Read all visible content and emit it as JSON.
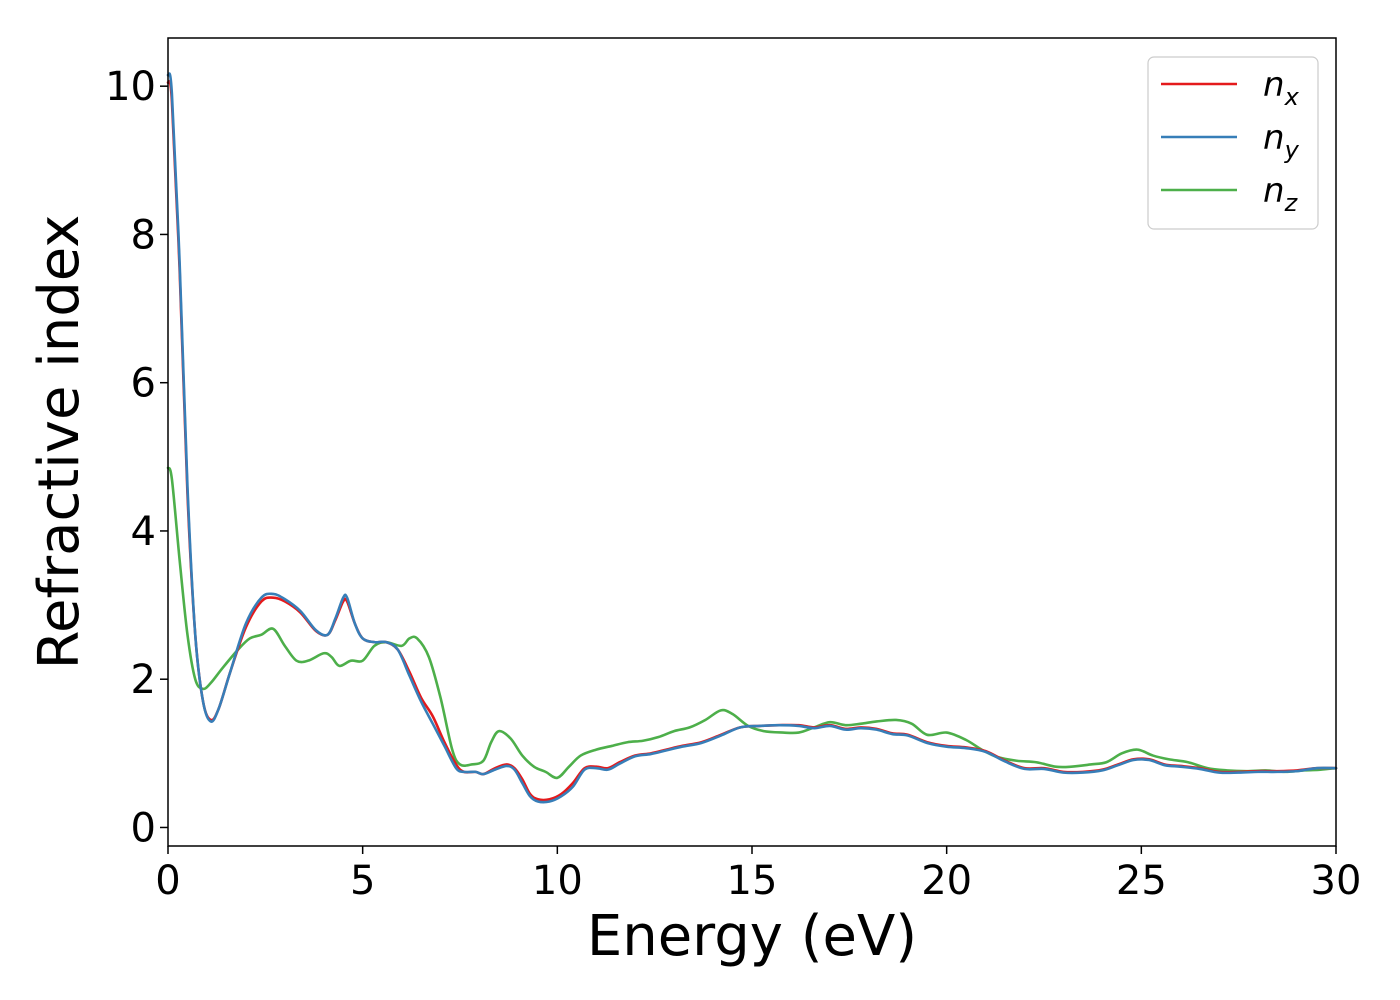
{
  "chart_data": {
    "type": "line",
    "xlabel": "Energy (eV)",
    "ylabel": "Refractive index",
    "xlim": [
      0,
      30
    ],
    "ylim": [
      -0.25,
      10.65
    ],
    "xticks": [
      0,
      5,
      10,
      15,
      20,
      25,
      30
    ],
    "yticks": [
      0,
      2,
      4,
      6,
      8,
      10
    ],
    "grid": false,
    "legend_position": "top-right",
    "series": [
      {
        "name": "n",
        "subscript": "x",
        "color": "#e41a1c",
        "points": [
          [
            0,
            10.05
          ],
          [
            0.1,
            9.8
          ],
          [
            0.3,
            7.5
          ],
          [
            0.5,
            4.5
          ],
          [
            0.7,
            2.6
          ],
          [
            0.9,
            1.7
          ],
          [
            1.1,
            1.45
          ],
          [
            1.3,
            1.6
          ],
          [
            1.6,
            2.1
          ],
          [
            2.0,
            2.7
          ],
          [
            2.4,
            3.05
          ],
          [
            2.7,
            3.1
          ],
          [
            3.0,
            3.05
          ],
          [
            3.4,
            2.9
          ],
          [
            3.8,
            2.65
          ],
          [
            4.1,
            2.6
          ],
          [
            4.3,
            2.8
          ],
          [
            4.5,
            3.05
          ],
          [
            4.6,
            3.05
          ],
          [
            4.8,
            2.75
          ],
          [
            5.0,
            2.55
          ],
          [
            5.3,
            2.5
          ],
          [
            5.6,
            2.5
          ],
          [
            5.9,
            2.4
          ],
          [
            6.2,
            2.1
          ],
          [
            6.5,
            1.75
          ],
          [
            6.8,
            1.5
          ],
          [
            7.1,
            1.15
          ],
          [
            7.4,
            0.85
          ],
          [
            7.6,
            0.75
          ],
          [
            7.9,
            0.75
          ],
          [
            8.1,
            0.72
          ],
          [
            8.4,
            0.8
          ],
          [
            8.7,
            0.85
          ],
          [
            8.9,
            0.8
          ],
          [
            9.1,
            0.65
          ],
          [
            9.3,
            0.45
          ],
          [
            9.5,
            0.38
          ],
          [
            9.8,
            0.38
          ],
          [
            10.1,
            0.45
          ],
          [
            10.4,
            0.6
          ],
          [
            10.7,
            0.8
          ],
          [
            11.0,
            0.82
          ],
          [
            11.3,
            0.8
          ],
          [
            11.6,
            0.88
          ],
          [
            12.0,
            0.97
          ],
          [
            12.4,
            1.0
          ],
          [
            12.8,
            1.05
          ],
          [
            13.2,
            1.1
          ],
          [
            13.7,
            1.15
          ],
          [
            14.2,
            1.25
          ],
          [
            14.7,
            1.35
          ],
          [
            15.2,
            1.37
          ],
          [
            15.7,
            1.38
          ],
          [
            16.2,
            1.38
          ],
          [
            16.6,
            1.35
          ],
          [
            17.0,
            1.38
          ],
          [
            17.4,
            1.33
          ],
          [
            17.8,
            1.35
          ],
          [
            18.2,
            1.33
          ],
          [
            18.6,
            1.27
          ],
          [
            19.0,
            1.25
          ],
          [
            19.5,
            1.15
          ],
          [
            20.0,
            1.1
          ],
          [
            20.5,
            1.08
          ],
          [
            21.0,
            1.03
          ],
          [
            21.5,
            0.9
          ],
          [
            22.0,
            0.8
          ],
          [
            22.5,
            0.8
          ],
          [
            23.0,
            0.75
          ],
          [
            23.5,
            0.75
          ],
          [
            24.0,
            0.78
          ],
          [
            24.4,
            0.85
          ],
          [
            24.8,
            0.92
          ],
          [
            25.2,
            0.92
          ],
          [
            25.6,
            0.85
          ],
          [
            26.0,
            0.83
          ],
          [
            26.5,
            0.8
          ],
          [
            27.0,
            0.75
          ],
          [
            27.5,
            0.75
          ],
          [
            28.0,
            0.76
          ],
          [
            28.5,
            0.76
          ],
          [
            29.0,
            0.77
          ],
          [
            29.5,
            0.8
          ],
          [
            30.0,
            0.8
          ]
        ]
      },
      {
        "name": "n",
        "subscript": "y",
        "color": "#377eb8",
        "points": [
          [
            0,
            10.15
          ],
          [
            0.1,
            9.9
          ],
          [
            0.3,
            7.6
          ],
          [
            0.5,
            4.6
          ],
          [
            0.7,
            2.6
          ],
          [
            0.9,
            1.7
          ],
          [
            1.1,
            1.43
          ],
          [
            1.3,
            1.6
          ],
          [
            1.6,
            2.1
          ],
          [
            2.0,
            2.75
          ],
          [
            2.4,
            3.1
          ],
          [
            2.7,
            3.15
          ],
          [
            3.0,
            3.08
          ],
          [
            3.4,
            2.92
          ],
          [
            3.8,
            2.66
          ],
          [
            4.1,
            2.6
          ],
          [
            4.3,
            2.82
          ],
          [
            4.5,
            3.1
          ],
          [
            4.6,
            3.1
          ],
          [
            4.8,
            2.75
          ],
          [
            5.0,
            2.55
          ],
          [
            5.3,
            2.5
          ],
          [
            5.6,
            2.5
          ],
          [
            5.9,
            2.4
          ],
          [
            6.2,
            2.05
          ],
          [
            6.5,
            1.7
          ],
          [
            6.8,
            1.4
          ],
          [
            7.1,
            1.1
          ],
          [
            7.4,
            0.8
          ],
          [
            7.6,
            0.75
          ],
          [
            7.9,
            0.75
          ],
          [
            8.1,
            0.72
          ],
          [
            8.4,
            0.78
          ],
          [
            8.7,
            0.83
          ],
          [
            8.9,
            0.78
          ],
          [
            9.1,
            0.6
          ],
          [
            9.3,
            0.42
          ],
          [
            9.5,
            0.35
          ],
          [
            9.8,
            0.35
          ],
          [
            10.1,
            0.42
          ],
          [
            10.4,
            0.55
          ],
          [
            10.7,
            0.78
          ],
          [
            11.0,
            0.8
          ],
          [
            11.3,
            0.78
          ],
          [
            11.6,
            0.86
          ],
          [
            12.0,
            0.96
          ],
          [
            12.4,
            0.99
          ],
          [
            12.8,
            1.04
          ],
          [
            13.2,
            1.09
          ],
          [
            13.7,
            1.14
          ],
          [
            14.2,
            1.24
          ],
          [
            14.7,
            1.35
          ],
          [
            15.2,
            1.37
          ],
          [
            15.7,
            1.38
          ],
          [
            16.2,
            1.37
          ],
          [
            16.6,
            1.34
          ],
          [
            17.0,
            1.37
          ],
          [
            17.4,
            1.32
          ],
          [
            17.8,
            1.34
          ],
          [
            18.2,
            1.32
          ],
          [
            18.6,
            1.26
          ],
          [
            19.0,
            1.24
          ],
          [
            19.5,
            1.14
          ],
          [
            20.0,
            1.09
          ],
          [
            20.5,
            1.07
          ],
          [
            21.0,
            1.02
          ],
          [
            21.5,
            0.89
          ],
          [
            22.0,
            0.79
          ],
          [
            22.5,
            0.79
          ],
          [
            23.0,
            0.74
          ],
          [
            23.5,
            0.74
          ],
          [
            24.0,
            0.77
          ],
          [
            24.4,
            0.84
          ],
          [
            24.8,
            0.91
          ],
          [
            25.2,
            0.91
          ],
          [
            25.6,
            0.84
          ],
          [
            26.0,
            0.82
          ],
          [
            26.5,
            0.79
          ],
          [
            27.0,
            0.74
          ],
          [
            27.5,
            0.74
          ],
          [
            28.0,
            0.75
          ],
          [
            28.5,
            0.75
          ],
          [
            29.0,
            0.76
          ],
          [
            29.5,
            0.8
          ],
          [
            30.0,
            0.8
          ]
        ]
      },
      {
        "name": "n",
        "subscript": "z",
        "color": "#4daf4a",
        "points": [
          [
            0,
            4.85
          ],
          [
            0.1,
            4.7
          ],
          [
            0.3,
            3.6
          ],
          [
            0.5,
            2.6
          ],
          [
            0.7,
            2.0
          ],
          [
            0.9,
            1.87
          ],
          [
            1.1,
            1.95
          ],
          [
            1.4,
            2.15
          ],
          [
            1.8,
            2.4
          ],
          [
            2.1,
            2.55
          ],
          [
            2.4,
            2.6
          ],
          [
            2.7,
            2.68
          ],
          [
            3.0,
            2.45
          ],
          [
            3.3,
            2.25
          ],
          [
            3.6,
            2.25
          ],
          [
            4.0,
            2.35
          ],
          [
            4.2,
            2.3
          ],
          [
            4.4,
            2.18
          ],
          [
            4.7,
            2.25
          ],
          [
            5.0,
            2.25
          ],
          [
            5.3,
            2.45
          ],
          [
            5.6,
            2.5
          ],
          [
            6.0,
            2.45
          ],
          [
            6.2,
            2.55
          ],
          [
            6.4,
            2.55
          ],
          [
            6.7,
            2.3
          ],
          [
            7.0,
            1.75
          ],
          [
            7.3,
            1.05
          ],
          [
            7.5,
            0.85
          ],
          [
            7.8,
            0.85
          ],
          [
            8.1,
            0.9
          ],
          [
            8.3,
            1.15
          ],
          [
            8.5,
            1.3
          ],
          [
            8.8,
            1.2
          ],
          [
            9.1,
            0.97
          ],
          [
            9.4,
            0.82
          ],
          [
            9.7,
            0.75
          ],
          [
            10.0,
            0.67
          ],
          [
            10.3,
            0.82
          ],
          [
            10.6,
            0.97
          ],
          [
            11.0,
            1.05
          ],
          [
            11.4,
            1.1
          ],
          [
            11.8,
            1.15
          ],
          [
            12.2,
            1.17
          ],
          [
            12.6,
            1.22
          ],
          [
            13.0,
            1.3
          ],
          [
            13.4,
            1.35
          ],
          [
            13.8,
            1.45
          ],
          [
            14.2,
            1.58
          ],
          [
            14.5,
            1.53
          ],
          [
            14.9,
            1.37
          ],
          [
            15.3,
            1.3
          ],
          [
            15.8,
            1.28
          ],
          [
            16.2,
            1.28
          ],
          [
            16.6,
            1.35
          ],
          [
            17.0,
            1.42
          ],
          [
            17.4,
            1.38
          ],
          [
            17.8,
            1.4
          ],
          [
            18.2,
            1.43
          ],
          [
            18.7,
            1.45
          ],
          [
            19.1,
            1.4
          ],
          [
            19.5,
            1.25
          ],
          [
            20.0,
            1.28
          ],
          [
            20.5,
            1.18
          ],
          [
            20.9,
            1.05
          ],
          [
            21.3,
            0.95
          ],
          [
            21.8,
            0.9
          ],
          [
            22.3,
            0.88
          ],
          [
            22.8,
            0.82
          ],
          [
            23.2,
            0.82
          ],
          [
            23.7,
            0.85
          ],
          [
            24.1,
            0.88
          ],
          [
            24.5,
            1.0
          ],
          [
            24.9,
            1.05
          ],
          [
            25.3,
            0.97
          ],
          [
            25.7,
            0.92
          ],
          [
            26.2,
            0.88
          ],
          [
            26.7,
            0.8
          ],
          [
            27.2,
            0.77
          ],
          [
            27.7,
            0.76
          ],
          [
            28.2,
            0.77
          ],
          [
            28.7,
            0.75
          ],
          [
            29.2,
            0.77
          ],
          [
            29.6,
            0.78
          ],
          [
            30.0,
            0.8
          ]
        ]
      }
    ]
  }
}
